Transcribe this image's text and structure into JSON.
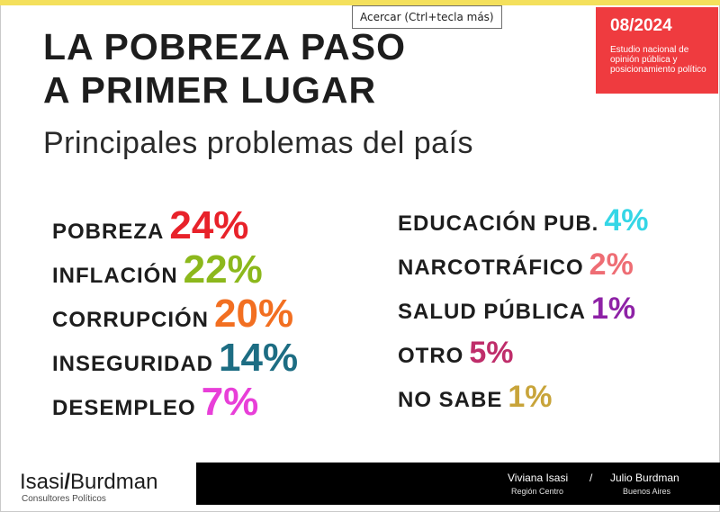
{
  "tooltip": "Acercar (Ctrl+tecla más)",
  "badge": {
    "date": "08/2024",
    "description": "Estudio nacional de opinión pública y posicionamiento político"
  },
  "headline": {
    "line1": "LA POBREZA PASO",
    "line2": "A PRIMER LUGAR"
  },
  "subtitle": "Principales problemas del país",
  "colors": {
    "accent_bar": "#f4e05c",
    "badge": "#ef3b3f",
    "footer": "#000000"
  },
  "chart_data": {
    "type": "table",
    "title": "Principales problemas del país",
    "unit": "%",
    "items": [
      {
        "label": "POBREZA",
        "value": 24,
        "display": "24%",
        "color": "#e8222a"
      },
      {
        "label": "INFLACIÓN",
        "value": 22,
        "display": "22%",
        "color": "#8cb81c"
      },
      {
        "label": "CORRUPCIÓN",
        "value": 20,
        "display": "20%",
        "color": "#f26f21"
      },
      {
        "label": "INSEGURIDAD",
        "value": 14,
        "display": "14%",
        "color": "#1d6d83"
      },
      {
        "label": "DESEMPLEO",
        "value": 7,
        "display": "7%",
        "color": "#e83fd8"
      },
      {
        "label": "EDUCACIÓN PUB.",
        "value": 4,
        "display": "4%",
        "color": "#35d6e6"
      },
      {
        "label": "NARCOTRÁFICO",
        "value": 2,
        "display": "2%",
        "color": "#ee6d74"
      },
      {
        "label": "SALUD PÚBLICA",
        "value": 1,
        "display": "1%",
        "color": "#8e22a6"
      },
      {
        "label": "OTRO",
        "value": 5,
        "display": "5%",
        "color": "#bf2d6a"
      },
      {
        "label": "NO SABE",
        "value": 1,
        "display": "1%",
        "color": "#c8a43a"
      }
    ]
  },
  "footer": {
    "person1": {
      "name": "Viviana Isasi",
      "region": "Región Centro"
    },
    "separator": "/",
    "person2": {
      "name": "Julio Burdman",
      "region": "Buenos Aires"
    }
  },
  "logo": {
    "left": "Isasi",
    "slash": "/",
    "right": "Burdman",
    "tagline": "Consultores Políticos"
  }
}
